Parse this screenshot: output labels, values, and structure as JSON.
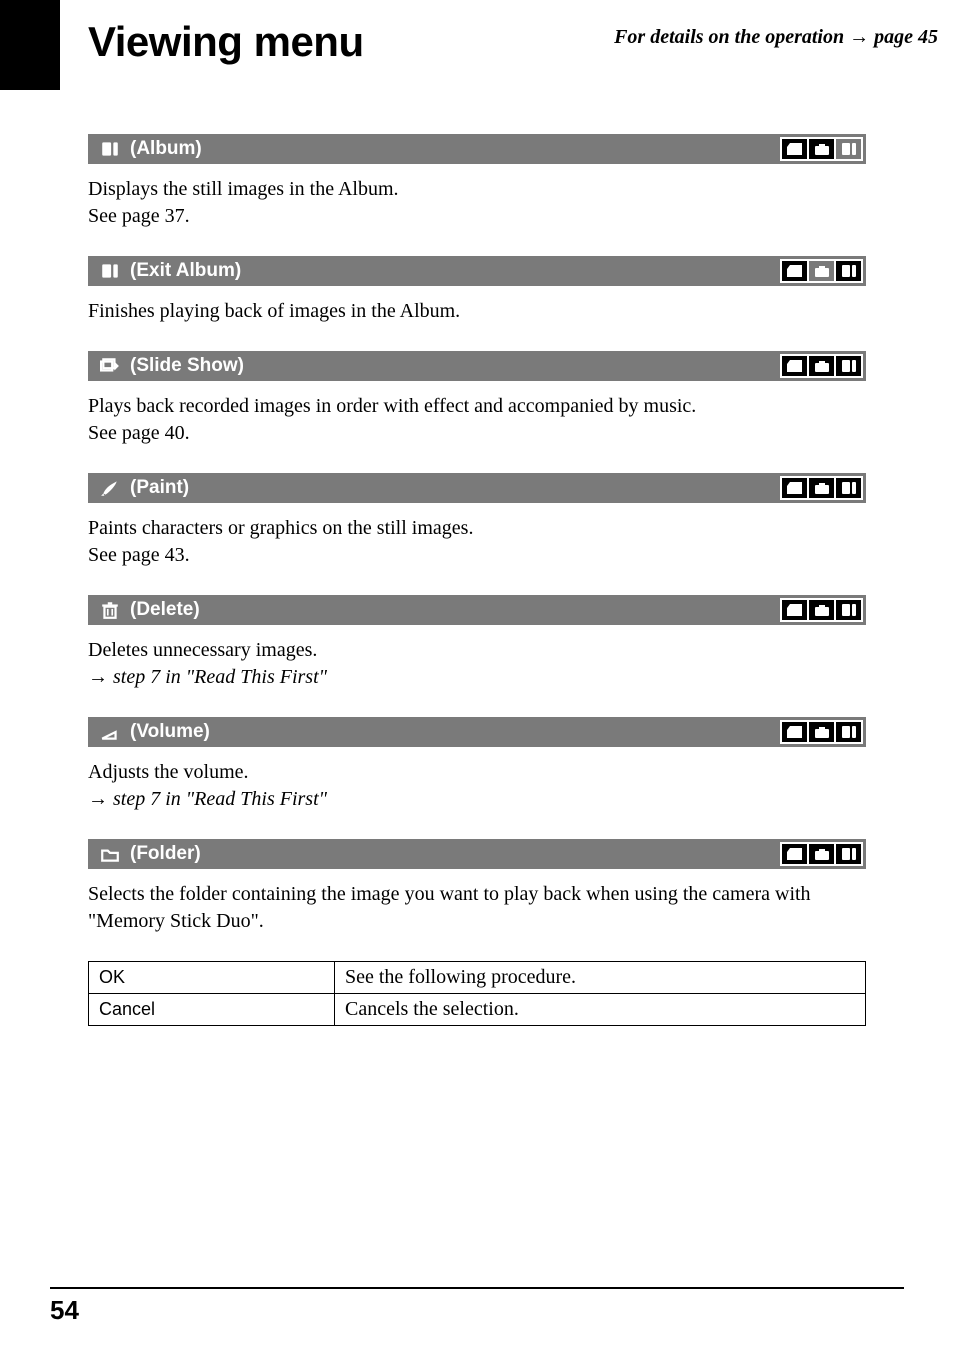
{
  "header": {
    "title": "Viewing menu",
    "subtitle_prefix": "For details on the operation ",
    "subtitle_arrow": "→",
    "subtitle_suffix": " page 45"
  },
  "colors": {
    "section_bg": "#7a7a7a",
    "section_fg": "#ffffff",
    "icon_enabled_bg": "#000000",
    "icon_border": "#ffffff"
  },
  "mode_icons": [
    "memory-stick",
    "camera",
    "album"
  ],
  "sections": [
    {
      "id": "album",
      "icon": "album",
      "label": "(Album)",
      "modes": [
        "enabled",
        "enabled",
        "disabled"
      ],
      "desc_lines": [
        "Displays the still images in the Album.",
        "See page 37."
      ]
    },
    {
      "id": "exit-album",
      "icon": "album",
      "label": "(Exit Album)",
      "modes": [
        "enabled",
        "disabled",
        "enabled"
      ],
      "desc_lines": [
        "Finishes playing back of images in the Album."
      ]
    },
    {
      "id": "slide-show",
      "icon": "slideshow",
      "label": "(Slide Show)",
      "modes": [
        "enabled",
        "enabled",
        "enabled"
      ],
      "desc_lines": [
        "Plays back recorded images in order with effect and accompanied by music.",
        "See page 40."
      ]
    },
    {
      "id": "paint",
      "icon": "paint",
      "label": "(Paint)",
      "modes": [
        "enabled",
        "enabled",
        "enabled"
      ],
      "desc_lines": [
        "Paints characters or graphics on the still images.",
        "See page 43."
      ]
    },
    {
      "id": "delete",
      "icon": "trash",
      "label": "(Delete)",
      "modes": [
        "enabled",
        "enabled",
        "enabled"
      ],
      "desc_lines": [
        "Deletes unnecessary images."
      ],
      "ref_arrow": "→",
      "ref_text": " step 7 in \"Read This First\""
    },
    {
      "id": "volume",
      "icon": "volume",
      "label": "(Volume)",
      "modes": [
        "enabled",
        "enabled",
        "enabled"
      ],
      "desc_lines": [
        "Adjusts the volume."
      ],
      "ref_arrow": "→",
      "ref_text": " step 7 in \"Read This First\""
    },
    {
      "id": "folder",
      "icon": "folder",
      "label": "(Folder)",
      "modes": [
        "enabled",
        "enabled",
        "enabled"
      ],
      "desc_lines": [
        "Selects the folder containing the image you want to play back when using the camera with \"Memory Stick Duo\"."
      ]
    }
  ],
  "table": {
    "rows": [
      {
        "label": "OK",
        "value": "See the following procedure."
      },
      {
        "label": "Cancel",
        "value": "Cancels the selection."
      }
    ]
  },
  "page_number": "54"
}
